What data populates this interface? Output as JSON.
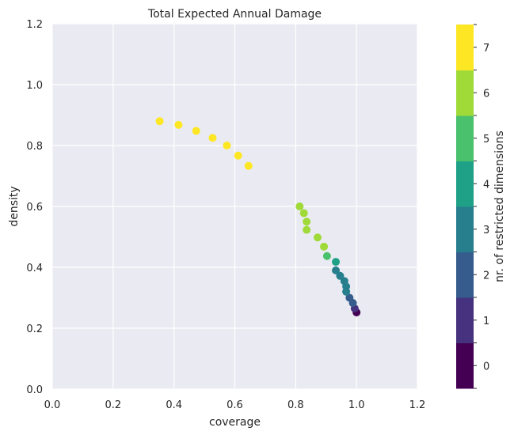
{
  "chart_data": {
    "type": "scatter",
    "title": "Total Expected Annual Damage",
    "xlabel": "coverage",
    "ylabel": "density",
    "xlim": [
      0.0,
      1.2
    ],
    "ylim": [
      0.0,
      1.2
    ],
    "xticks": [
      "0.0",
      "0.2",
      "0.4",
      "0.6",
      "0.8",
      "1.0",
      "1.2"
    ],
    "yticks": [
      "0.0",
      "0.2",
      "0.4",
      "0.6",
      "0.8",
      "1.0",
      "1.2"
    ],
    "grid": true,
    "background": "#eaeaf2",
    "points": [
      {
        "x": 1.0,
        "y": 0.252,
        "dims": 0
      },
      {
        "x": 0.994,
        "y": 0.265,
        "dims": 1
      },
      {
        "x": 0.988,
        "y": 0.283,
        "dims": 2
      },
      {
        "x": 0.977,
        "y": 0.3,
        "dims": 2
      },
      {
        "x": 0.966,
        "y": 0.32,
        "dims": 3
      },
      {
        "x": 0.966,
        "y": 0.337,
        "dims": 3
      },
      {
        "x": 0.96,
        "y": 0.355,
        "dims": 3
      },
      {
        "x": 0.946,
        "y": 0.372,
        "dims": 3
      },
      {
        "x": 0.932,
        "y": 0.39,
        "dims": 3
      },
      {
        "x": 0.932,
        "y": 0.418,
        "dims": 4
      },
      {
        "x": 0.903,
        "y": 0.437,
        "dims": 5
      },
      {
        "x": 0.893,
        "y": 0.468,
        "dims": 6
      },
      {
        "x": 0.872,
        "y": 0.498,
        "dims": 6
      },
      {
        "x": 0.836,
        "y": 0.523,
        "dims": 6
      },
      {
        "x": 0.836,
        "y": 0.55,
        "dims": 6
      },
      {
        "x": 0.827,
        "y": 0.578,
        "dims": 6
      },
      {
        "x": 0.813,
        "y": 0.6,
        "dims": 6
      },
      {
        "x": 0.645,
        "y": 0.733,
        "dims": 7
      },
      {
        "x": 0.611,
        "y": 0.767,
        "dims": 7
      },
      {
        "x": 0.574,
        "y": 0.8,
        "dims": 7
      },
      {
        "x": 0.527,
        "y": 0.825,
        "dims": 7
      },
      {
        "x": 0.473,
        "y": 0.848,
        "dims": 7
      },
      {
        "x": 0.415,
        "y": 0.868,
        "dims": 7
      },
      {
        "x": 0.353,
        "y": 0.88,
        "dims": 7
      }
    ],
    "colorbar": {
      "label": "nr. of restricted dimensions",
      "ticks": [
        "0",
        "1",
        "2",
        "3",
        "4",
        "5",
        "6",
        "7"
      ],
      "colors": [
        "#440154",
        "#46327e",
        "#365c8d",
        "#277f8e",
        "#1fa187",
        "#4ac16d",
        "#a0da39",
        "#fde725"
      ]
    }
  }
}
